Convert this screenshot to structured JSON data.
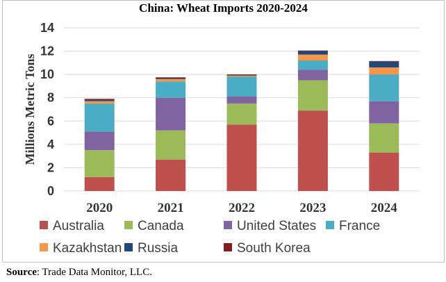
{
  "source": {
    "label": "Source",
    "text": ": Trade Data Monitor, LLC."
  },
  "chart_data": {
    "type": "bar",
    "stacked": true,
    "title": "China: Wheat Imports 2020-2024",
    "xlabel": "",
    "ylabel": "Millions Metric Tons",
    "ylim": [
      0,
      14
    ],
    "yticks": [
      0,
      2,
      4,
      6,
      8,
      10,
      12,
      14
    ],
    "grid": true,
    "legend_position": "bottom",
    "categories": [
      "2020",
      "2021",
      "2022",
      "2023",
      "2024"
    ],
    "series": [
      {
        "name": "Australia",
        "color": "#C0504D",
        "values": [
          1.2,
          2.7,
          5.7,
          6.9,
          3.3
        ]
      },
      {
        "name": "Canada",
        "color": "#9BBB59",
        "values": [
          2.3,
          2.5,
          1.8,
          2.6,
          2.5
        ]
      },
      {
        "name": "United States",
        "color": "#8064A2",
        "values": [
          1.6,
          2.8,
          0.6,
          0.9,
          1.9
        ]
      },
      {
        "name": "France",
        "color": "#4BACC6",
        "values": [
          2.4,
          1.4,
          1.7,
          0.8,
          2.3
        ]
      },
      {
        "name": "Kazakhstan",
        "color": "#F79646",
        "values": [
          0.2,
          0.2,
          0.1,
          0.5,
          0.6
        ]
      },
      {
        "name": "Russia",
        "color": "#1F497D",
        "values": [
          0.1,
          0.05,
          0.05,
          0.3,
          0.5
        ]
      },
      {
        "name": "South Korea",
        "color": "#7F1F1F",
        "values": [
          0.1,
          0.1,
          0.05,
          0.05,
          0.05
        ]
      }
    ]
  }
}
